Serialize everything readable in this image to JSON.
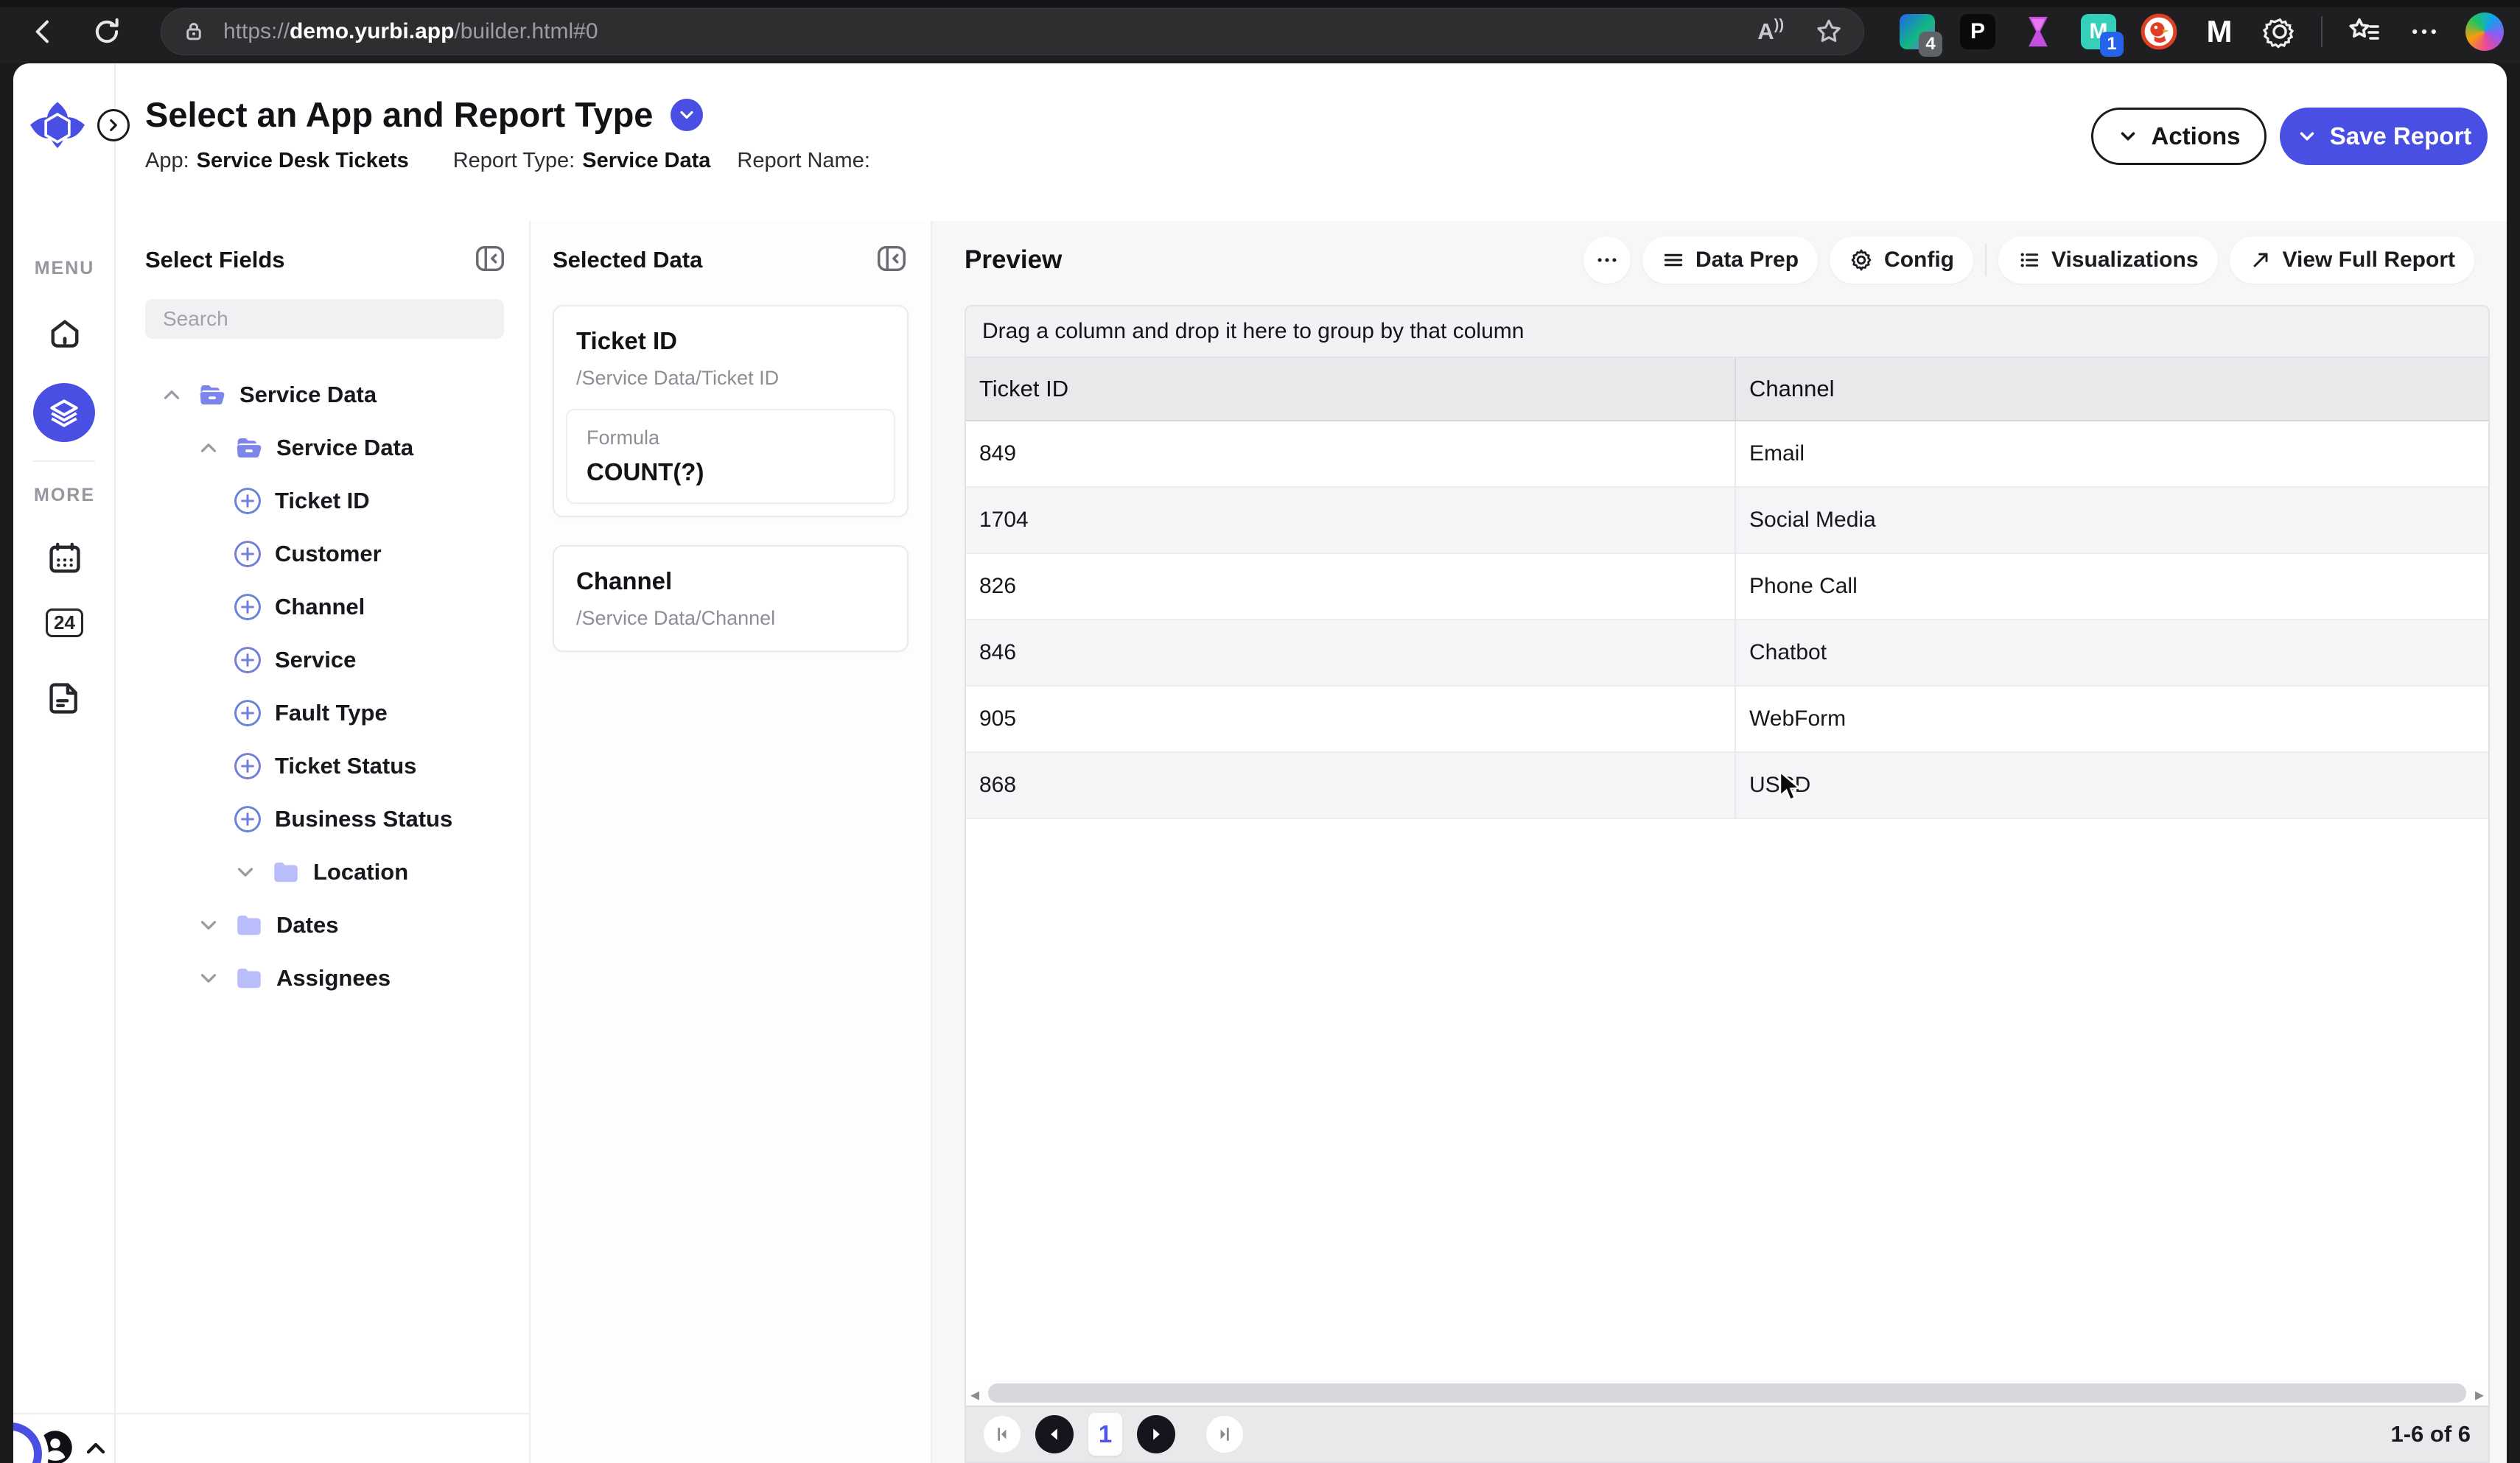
{
  "browser": {
    "url_scheme": "https://",
    "url_domain": "demo.yurbi.app",
    "url_path": "/builder.html#0",
    "read_aloud_label": "A",
    "ext_letter_p": "P",
    "ext_letter_m": "M",
    "ext_letter_mb": "M",
    "ext_badge_1": "4",
    "ext_badge_2": "1"
  },
  "sidebar": {
    "menu_label": "MENU",
    "more_label": "MORE",
    "badge_24": "24"
  },
  "header": {
    "title": "Select an App and Report Type",
    "app_label": "App:",
    "app_value": "Service Desk Tickets",
    "report_type_label": "Report Type:",
    "report_type_value": "Service Data",
    "report_name_label": "Report Name:",
    "actions_label": "Actions",
    "save_label": "Save Report"
  },
  "select_fields": {
    "title": "Select Fields",
    "search_placeholder": "Search",
    "tree": [
      {
        "level": 0,
        "chevron": "up",
        "icon": "folder-open",
        "label": "Service Data"
      },
      {
        "level": 1,
        "chevron": "up",
        "icon": "folder-open",
        "label": "Service Data"
      },
      {
        "level": 2,
        "chevron": "none",
        "icon": "plus",
        "label": "Ticket ID"
      },
      {
        "level": 2,
        "chevron": "none",
        "icon": "plus",
        "label": "Customer"
      },
      {
        "level": 2,
        "chevron": "none",
        "icon": "plus",
        "label": "Channel"
      },
      {
        "level": 2,
        "chevron": "none",
        "icon": "plus",
        "label": "Service"
      },
      {
        "level": 2,
        "chevron": "none",
        "icon": "plus",
        "label": "Fault Type"
      },
      {
        "level": 2,
        "chevron": "none",
        "icon": "plus",
        "label": "Ticket Status"
      },
      {
        "level": 2,
        "chevron": "none",
        "icon": "plus",
        "label": "Business Status"
      },
      {
        "level": 2,
        "chevron": "down",
        "icon": "folder-closed",
        "label": "Location"
      },
      {
        "level": 1,
        "chevron": "down",
        "icon": "folder-closed",
        "label": "Dates"
      },
      {
        "level": 1,
        "chevron": "down",
        "icon": "folder-closed",
        "label": "Assignees"
      }
    ]
  },
  "selected_data": {
    "title": "Selected Data",
    "cards": [
      {
        "title": "Ticket ID",
        "path": "/Service Data/Ticket ID",
        "formula_label": "Formula",
        "formula_value": "COUNT(?)"
      },
      {
        "title": "Channel",
        "path": "/Service Data/Channel"
      }
    ]
  },
  "preview": {
    "title": "Preview",
    "buttons": {
      "data_prep": "Data Prep",
      "config": "Config",
      "visualizations": "Visualizations",
      "view_full_report": "View Full Report"
    },
    "drag_hint": "Drag a column and drop it here to group by that column",
    "table": {
      "columns": [
        "Ticket ID",
        "Channel"
      ],
      "rows": [
        [
          "849",
          "Email"
        ],
        [
          "1704",
          "Social Media"
        ],
        [
          "826",
          "Phone Call"
        ],
        [
          "846",
          "Chatbot"
        ],
        [
          "905",
          "WebForm"
        ],
        [
          "868",
          "USSD"
        ]
      ]
    },
    "pagination": {
      "current_page": "1",
      "range_label": "1-6 of 6"
    }
  },
  "colors": {
    "accent": "#4a4fe4",
    "folder_open": "#7d84ea",
    "folder_closed": "#b9befa"
  }
}
